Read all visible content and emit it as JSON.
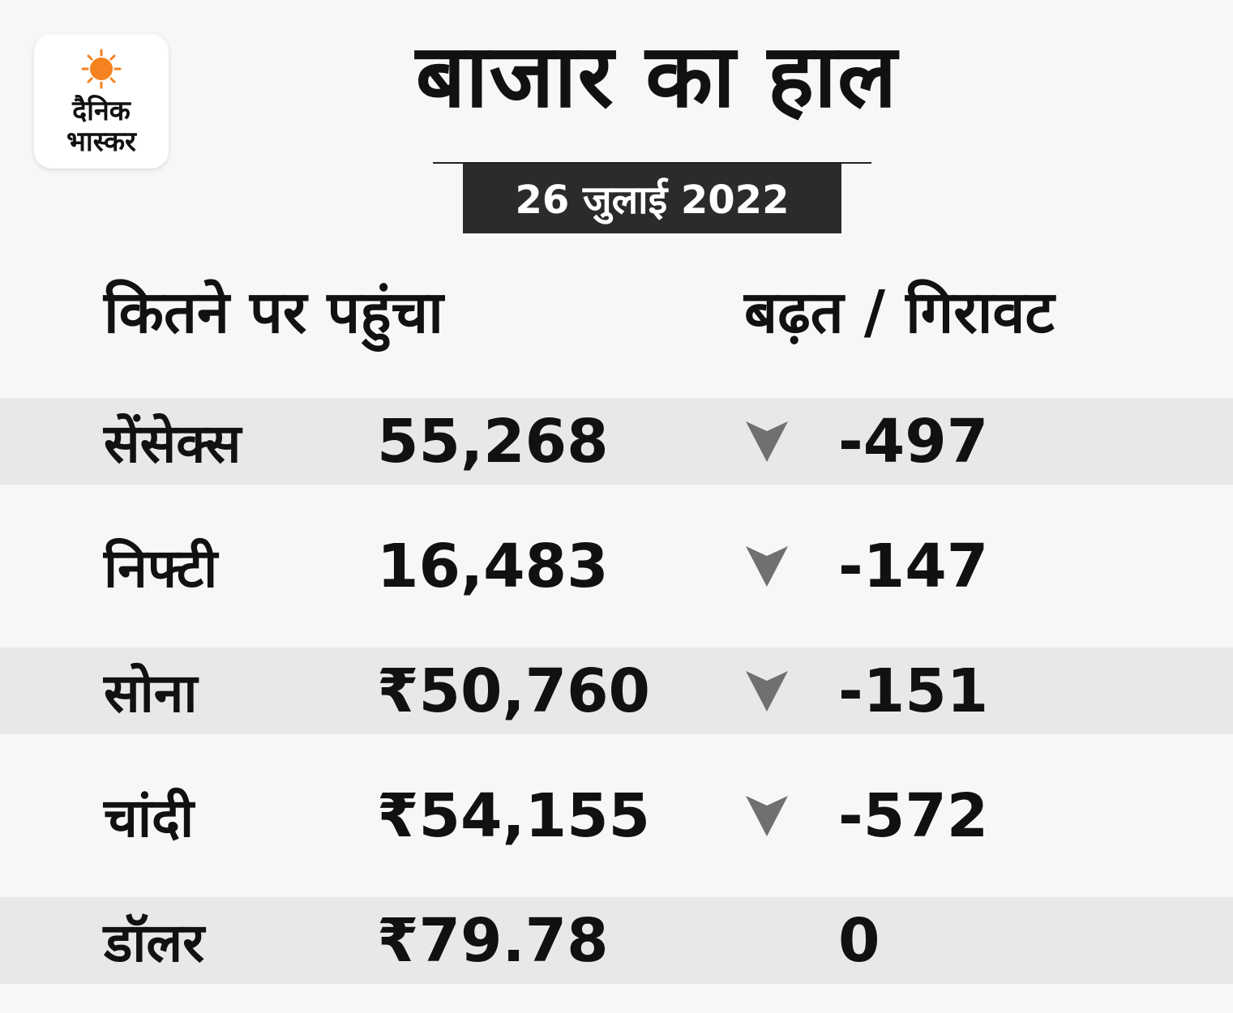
{
  "logo": {
    "line1": "दैनिक",
    "line2": "भास्कर",
    "sun_color": "#f4821f"
  },
  "header": {
    "title": "बाजार का हाल",
    "date": "26 जुलाई 2022"
  },
  "table": {
    "col_left": "कितने पर पहुंचा",
    "col_right": "बढ़त / गिरावट",
    "rows": [
      {
        "name": "सेंसेक्स",
        "value": "55,268",
        "trend": "down",
        "change": "-497"
      },
      {
        "name": "निफ्टी",
        "value": "16,483",
        "trend": "down",
        "change": "-147"
      },
      {
        "name": "सोना",
        "value": "₹50,760",
        "trend": "down",
        "change": "-151"
      },
      {
        "name": "चांदी",
        "value": "₹54,155",
        "trend": "down",
        "change": "-572"
      },
      {
        "name": "डॉलर",
        "value": "₹79.78",
        "trend": "none",
        "change": "0"
      }
    ]
  },
  "colors": {
    "background": "#f7f7f7",
    "row_shade": "#e8e8e8",
    "date_box": "#2b2b2b",
    "arrow": "#707070"
  }
}
